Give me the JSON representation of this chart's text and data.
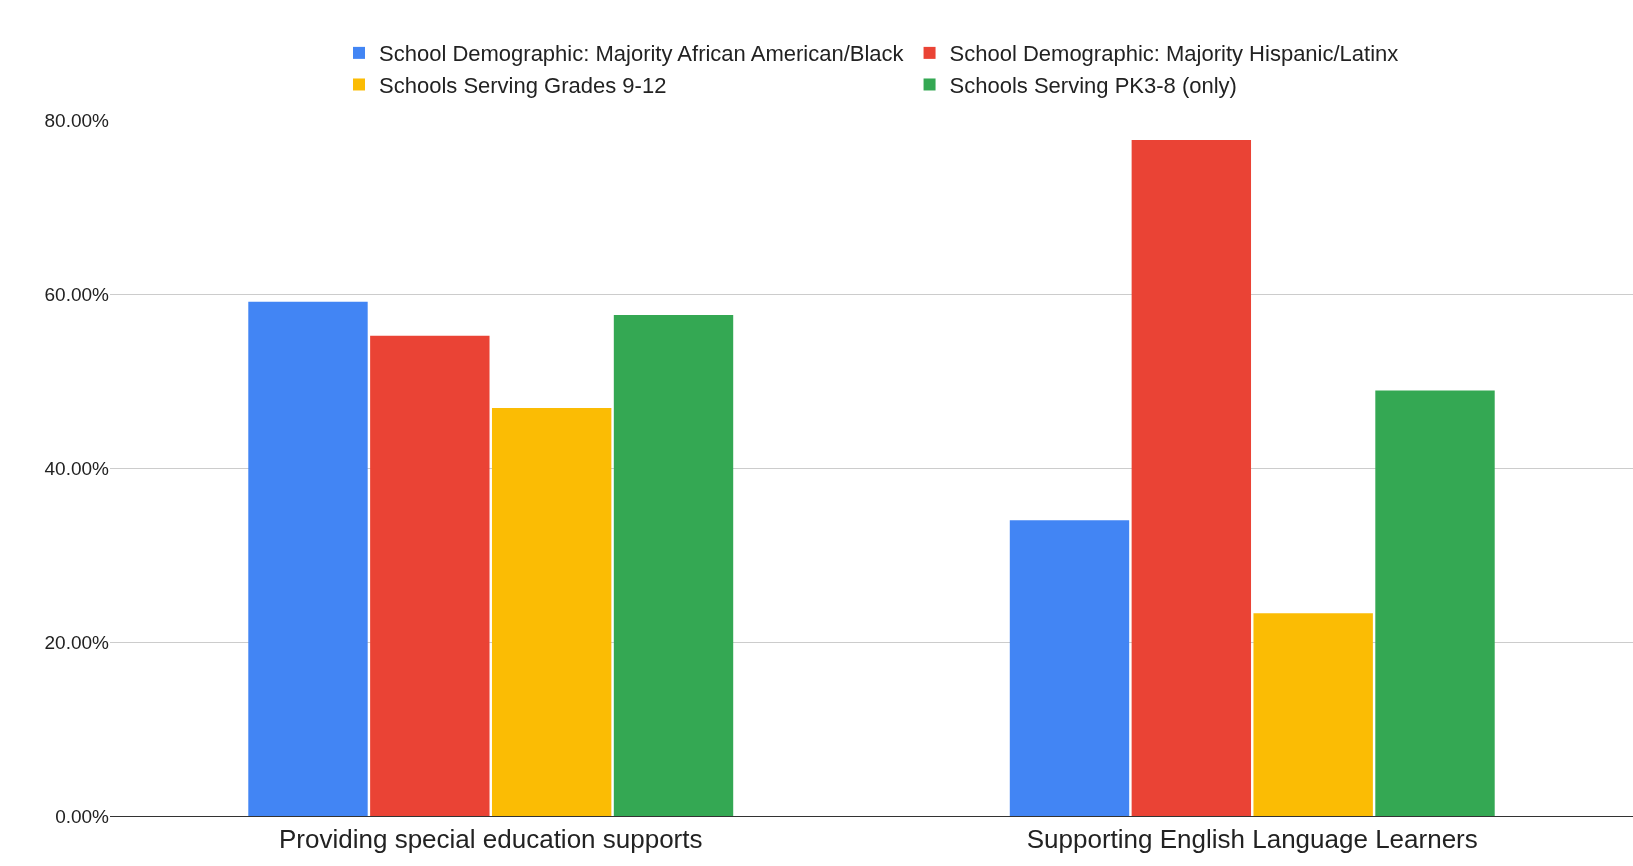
{
  "chart_data": {
    "type": "bar",
    "categories": [
      "Providing special education supports",
      "Supporting English Language Learners"
    ],
    "series": [
      {
        "name": "School Demographic: Majority African American/Black",
        "color": "#4285f4",
        "values": [
          59.1,
          34.0
        ]
      },
      {
        "name": "School Demographic: Majority Hispanic/Latinx",
        "color": "#ea4335",
        "values": [
          55.2,
          77.7
        ]
      },
      {
        "name": "Schools Serving Grades 9-12",
        "color": "#fbbc04",
        "values": [
          46.9,
          23.3
        ]
      },
      {
        "name": "Schools Serving PK3-8 (only)",
        "color": "#34a853",
        "values": [
          57.6,
          48.9
        ]
      }
    ],
    "ylim": [
      0,
      80
    ],
    "yticks": [
      {
        "value": 0,
        "label": "0.00%"
      },
      {
        "value": 20,
        "label": "20.00%"
      },
      {
        "value": 40,
        "label": "40.00%"
      },
      {
        "value": 60,
        "label": "60.00%"
      },
      {
        "value": 80,
        "label": "80.00%"
      }
    ],
    "grid": "y",
    "legend": "top"
  }
}
